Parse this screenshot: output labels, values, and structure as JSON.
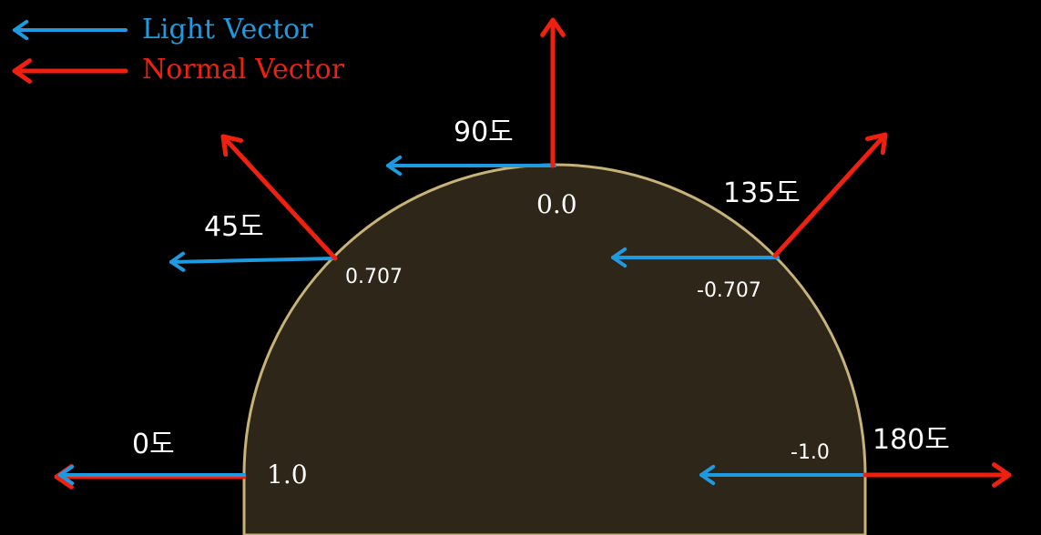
{
  "colors": {
    "light": "#1E9BE0",
    "normal": "#F02010",
    "sphere_fill": "#2E2618",
    "sphere_stroke": "#C7B27A",
    "background": "#000000"
  },
  "legend": {
    "light_label": "Light Vector",
    "normal_label": "Normal Vector"
  },
  "points": [
    {
      "angle_label": "0도",
      "value_label": "1.0"
    },
    {
      "angle_label": "45도",
      "value_label": "0.707"
    },
    {
      "angle_label": "90도",
      "value_label": "0.0"
    },
    {
      "angle_label": "135도",
      "value_label": "-0.707"
    },
    {
      "angle_label": "180도",
      "value_label": "-1.0"
    }
  ]
}
